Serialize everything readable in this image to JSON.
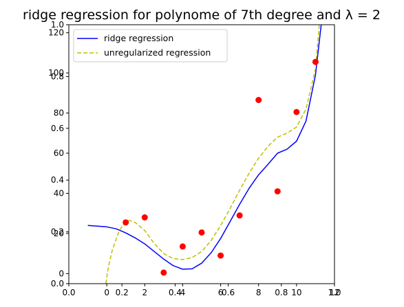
{
  "chart_data": {
    "type": "scatter",
    "title": "ridge regression for polynome of 7th degree and λ = 2",
    "xlabel": "",
    "ylabel": "",
    "xlim": [
      -2,
      12
    ],
    "ylim": [
      -5,
      124
    ],
    "x_ticks": [
      0,
      2,
      4,
      6,
      8,
      10,
      12
    ],
    "y_ticks": [
      0,
      20,
      40,
      60,
      80,
      100,
      120
    ],
    "overlay_axis_ticks": [
      "0.0",
      "0.2",
      "0.4",
      "0.6",
      "0.8",
      "1.0"
    ],
    "grid": false,
    "legend_position": "upper-left",
    "points": {
      "name": "",
      "color": "#ff0000",
      "x": [
        1,
        2,
        3,
        4,
        5,
        6,
        7,
        8,
        9,
        10,
        11
      ],
      "y": [
        25.5,
        28,
        0.5,
        13.5,
        20.5,
        9,
        29,
        86.5,
        41,
        80.5,
        105.5
      ]
    },
    "series": [
      {
        "name": "ridge regression",
        "color": "#0000ff",
        "style": "solid",
        "x": [
          -1,
          0,
          0.5,
          1,
          1.5,
          2,
          2.5,
          3,
          3.5,
          4,
          4.5,
          5,
          5.5,
          6,
          6.5,
          7,
          7.5,
          8,
          8.5,
          9,
          9.5,
          10,
          10.5,
          11,
          11.3
        ],
        "y": [
          24,
          23.3,
          22.3,
          20.3,
          17.8,
          14.8,
          11,
          7.2,
          4,
          2.2,
          2.4,
          5.2,
          10.4,
          17.5,
          26,
          34.5,
          42.5,
          49.2,
          54.5,
          60,
          62,
          66,
          76,
          99,
          124
        ]
      },
      {
        "name": "unregularized regression",
        "color": "#bfbf00",
        "style": "dashed",
        "x": [
          -0.05,
          0,
          0.1,
          0.3,
          0.6,
          0.8,
          1,
          1.2,
          1.5,
          2,
          2.5,
          3,
          3.5,
          4,
          4.5,
          5,
          5.5,
          6,
          6.5,
          7,
          7.5,
          8,
          8.5,
          9,
          9.5,
          10,
          10.5,
          11,
          11.2
        ],
        "y": [
          -5,
          -2,
          4,
          12,
          20,
          23.5,
          25.5,
          26.5,
          25.5,
          21.5,
          15,
          10,
          7.5,
          7,
          8,
          11,
          16.5,
          24,
          32.5,
          41.5,
          50,
          57.5,
          63.5,
          68,
          70,
          73,
          82,
          102,
          124
        ]
      }
    ]
  }
}
